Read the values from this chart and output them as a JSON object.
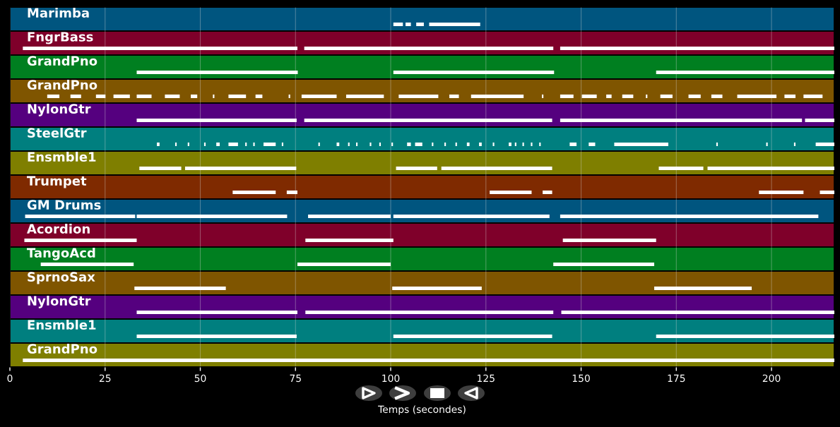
{
  "chart_data": {
    "type": "bar",
    "orientation": "horizontal",
    "categories": [
      "Marimba",
      "FngrBass",
      "GrandPno",
      "GrandPno",
      "NylonGtr",
      "SteelGtr",
      "Ensmble1",
      "Trumpet",
      "GM Drums",
      "Acordion",
      "TangoAcd",
      "SprnoSax",
      "NylonGtr",
      "Ensmble1",
      "GrandPno"
    ],
    "xlabel": "Temps (secondes)",
    "xlim": [
      0,
      216.5
    ],
    "xticks": [
      0,
      25,
      50,
      75,
      100,
      125,
      150,
      175,
      200
    ],
    "grid": "x",
    "series": [
      {
        "colors": [
          "#00557f",
          "#7f002a",
          "#007f20",
          "#7f5500",
          "#55007f",
          "#007f7f",
          "#7f7f00",
          "#7f2a00",
          "#00557f",
          "#7f002a",
          "#007f20",
          "#7f5500",
          "#55007f",
          "#007f7f",
          "#7f7f00"
        ],
        "values": [
          216.5,
          216.5,
          216.5,
          216.5,
          216.5,
          216.5,
          216.5,
          216.5,
          216.5,
          216.5,
          216.5,
          216.5,
          216.5,
          216.5,
          216.5
        ]
      },
      {
        "color": "#ffffff",
        "base": [
          100.7,
          3.4,
          33.3,
          9.8,
          33.3,
          38.6,
          34.0,
          58.5,
          4.0,
          3.8,
          8.1,
          32.7,
          33.3,
          33.3,
          3.4
        ],
        "values": [
          2.5,
          72.1,
          42.3,
          3.2,
          42.0,
          0.7,
          11.0,
          11.3,
          28.9,
          29.5,
          24.4,
          24.0,
          42.2,
          42.0,
          213.1
        ]
      },
      {
        "color": "#ffffff",
        "base": [
          103.9,
          77.3,
          100.7,
          15.9,
          77.3,
          43.4,
          46.0,
          72.7,
          33.3,
          77.6,
          75.5,
          100.4,
          77.6,
          100.7,
          null
        ],
        "values": [
          1.4,
          65.4,
          42.2,
          2.8,
          65.1,
          0.4,
          29.2,
          2.8,
          39.5,
          23.1,
          24.5,
          23.5,
          65.1,
          41.7,
          null
        ]
      },
      {
        "color": "#ffffff",
        "base": [
          106.7,
          144.5,
          169.7,
          22.6,
          144.5,
          46.7,
          101.4,
          126.0,
          78.3,
          145.2,
          142.7,
          169.2,
          144.8,
          169.7,
          null
        ],
        "values": [
          2.0,
          72.0,
          46.8,
          2.5,
          63.5,
          0.4,
          10.8,
          11.0,
          21.7,
          24.5,
          26.5,
          25.6,
          71.7,
          46.8,
          null
        ]
      },
      {
        "color": "#ffffff",
        "base": [
          110.1,
          null,
          null,
          27.2,
          208.8,
          51.0,
          113.3,
          139.9,
          100.7,
          null,
          null,
          null,
          null,
          null,
          null
        ],
        "values": [
          13.4,
          null,
          null,
          4.3,
          7.7,
          0.4,
          29.1,
          2.5,
          41.0,
          null,
          null,
          null,
          null,
          null,
          null
        ]
      },
      {
        "color": "#ffffff",
        "base": [
          null,
          null,
          null,
          33.3,
          null,
          54.2,
          170.4,
          196.7,
          144.5,
          null,
          null,
          null,
          null,
          null,
          null
        ],
        "values": [
          null,
          null,
          null,
          3.9,
          null,
          0.9,
          11.7,
          11.7,
          67.8,
          null,
          null,
          null,
          null,
          null,
          null
        ]
      },
      {
        "color": "#ffffff",
        "base": [
          null,
          null,
          null,
          40.7,
          null,
          57.4,
          183.2,
          212.7,
          null,
          null,
          null,
          null,
          null,
          null,
          null
        ],
        "values": [
          null,
          null,
          null,
          3.9,
          null,
          2.5,
          33.3,
          3.8,
          null,
          null,
          null,
          null,
          null,
          null,
          null
        ]
      },
      {
        "color": "#ffffff",
        "base": [
          null,
          null,
          null,
          47.5,
          null,
          61.8,
          null,
          null,
          null,
          null,
          null,
          null,
          null,
          null,
          null
        ],
        "values": [
          null,
          null,
          null,
          1.7,
          null,
          0.4,
          null,
          null,
          null,
          null,
          null,
          null,
          null,
          null,
          null
        ]
      },
      {
        "color": "#ffffff",
        "base": [
          null,
          null,
          null,
          53.3,
          null,
          63.9,
          null,
          null,
          null,
          null,
          null,
          null,
          null,
          null,
          null
        ],
        "values": [
          null,
          null,
          null,
          0.4,
          null,
          0.4,
          null,
          null,
          null,
          null,
          null,
          null,
          null,
          null,
          null
        ]
      },
      {
        "color": "#ffffff",
        "base": [
          null,
          null,
          null,
          57.4,
          null,
          66.6,
          null,
          null,
          null,
          null,
          null,
          null,
          null,
          null,
          null
        ],
        "values": [
          null,
          null,
          null,
          4.6,
          null,
          3.2,
          null,
          null,
          null,
          null,
          null,
          null,
          null,
          null,
          null
        ]
      },
      {
        "color": "#ffffff",
        "base": [
          null,
          null,
          null,
          64.5,
          null,
          71.4,
          null,
          null,
          null,
          null,
          null,
          null,
          null,
          null,
          null
        ],
        "values": [
          null,
          null,
          null,
          1.8,
          null,
          0.4,
          null,
          null,
          null,
          null,
          null,
          null,
          null,
          null,
          null
        ]
      },
      {
        "color": "#ffffff",
        "base": [
          null,
          null,
          null,
          73.2,
          null,
          81.0,
          null,
          null,
          null,
          null,
          null,
          null,
          null,
          null,
          null
        ],
        "values": [
          null,
          null,
          null,
          0.4,
          null,
          0.4,
          null,
          null,
          null,
          null,
          null,
          null,
          null,
          null,
          null
        ]
      },
      {
        "color": "#ffffff",
        "base": [
          null,
          null,
          null,
          76.6,
          null,
          85.8,
          null,
          null,
          null,
          null,
          null,
          null,
          null,
          null,
          null
        ],
        "values": [
          null,
          null,
          null,
          9.2,
          null,
          0.7,
          null,
          null,
          null,
          null,
          null,
          null,
          null,
          null,
          null
        ]
      },
      {
        "color": "#ffffff",
        "base": [
          null,
          null,
          null,
          88.3,
          null,
          88.8,
          null,
          null,
          null,
          null,
          null,
          null,
          null,
          null,
          null
        ],
        "values": [
          null,
          null,
          null,
          9.9,
          null,
          0.4,
          null,
          null,
          null,
          null,
          null,
          null,
          null,
          null,
          null
        ]
      },
      {
        "color": "#ffffff",
        "base": [
          null,
          null,
          null,
          102.1,
          null,
          90.9,
          null,
          null,
          null,
          null,
          null,
          null,
          null,
          null,
          null
        ],
        "values": [
          null,
          null,
          null,
          10.4,
          null,
          0.4,
          null,
          null,
          null,
          null,
          null,
          null,
          null,
          null,
          null
        ]
      },
      {
        "color": "#ffffff",
        "base": [
          null,
          null,
          null,
          115.4,
          null,
          94.5,
          null,
          null,
          null,
          null,
          null,
          null,
          null,
          null,
          null
        ],
        "values": [
          null,
          null,
          null,
          2.5,
          null,
          0.4,
          null,
          null,
          null,
          null,
          null,
          null,
          null,
          null,
          null
        ]
      },
      {
        "color": "#ffffff",
        "base": [
          null,
          null,
          null,
          121.1,
          null,
          97.0,
          null,
          null,
          null,
          null,
          null,
          null,
          null,
          null,
          null
        ],
        "values": [
          null,
          null,
          null,
          13.8,
          null,
          0.4,
          null,
          null,
          null,
          null,
          null,
          null,
          null,
          null,
          null
        ]
      },
      {
        "color": "#ffffff",
        "base": [
          null,
          null,
          null,
          139.7,
          null,
          100.2,
          null,
          null,
          null,
          null,
          null,
          null,
          null,
          null,
          null
        ],
        "values": [
          null,
          null,
          null,
          0.4,
          null,
          0.4,
          null,
          null,
          null,
          null,
          null,
          null,
          null,
          null,
          null
        ]
      },
      {
        "color": "#ffffff",
        "base": [
          null,
          null,
          null,
          144.5,
          null,
          104.3,
          null,
          null,
          null,
          null,
          null,
          null,
          null,
          null,
          null
        ],
        "values": [
          null,
          null,
          null,
          3.5,
          null,
          1.0,
          null,
          null,
          null,
          null,
          null,
          null,
          null,
          null,
          null
        ]
      },
      {
        "color": "#ffffff",
        "base": [
          null,
          null,
          null,
          150.2,
          null,
          106.4,
          null,
          null,
          null,
          null,
          null,
          null,
          null,
          null,
          null
        ],
        "values": [
          null,
          null,
          null,
          3.9,
          null,
          1.9,
          null,
          null,
          null,
          null,
          null,
          null,
          null,
          null,
          null
        ]
      },
      {
        "color": "#ffffff",
        "base": [
          null,
          null,
          null,
          156.6,
          null,
          110.8,
          null,
          null,
          null,
          null,
          null,
          null,
          null,
          null,
          null
        ],
        "values": [
          null,
          null,
          null,
          1.4,
          null,
          0.4,
          null,
          null,
          null,
          null,
          null,
          null,
          null,
          null,
          null
        ]
      },
      {
        "color": "#ffffff",
        "base": [
          null,
          null,
          null,
          160.8,
          null,
          114.1,
          null,
          null,
          null,
          null,
          null,
          null,
          null,
          null,
          null
        ],
        "values": [
          null,
          null,
          null,
          2.9,
          null,
          0.4,
          null,
          null,
          null,
          null,
          null,
          null,
          null,
          null,
          null
        ]
      },
      {
        "color": "#ffffff",
        "base": [
          null,
          null,
          null,
          167.0,
          null,
          117.0,
          null,
          null,
          null,
          null,
          null,
          null,
          null,
          null,
          null
        ],
        "values": [
          null,
          null,
          null,
          0.4,
          null,
          0.4,
          null,
          null,
          null,
          null,
          null,
          null,
          null,
          null,
          null
        ]
      },
      {
        "color": "#ffffff",
        "base": [
          null,
          null,
          null,
          170.8,
          null,
          120.0,
          null,
          null,
          null,
          null,
          null,
          null,
          null,
          null,
          null
        ],
        "values": [
          null,
          null,
          null,
          3.2,
          null,
          0.7,
          null,
          null,
          null,
          null,
          null,
          null,
          null,
          null,
          null
        ]
      },
      {
        "color": "#ffffff",
        "base": [
          null,
          null,
          null,
          178.2,
          null,
          123.2,
          null,
          null,
          null,
          null,
          null,
          null,
          null,
          null,
          null
        ],
        "values": [
          null,
          null,
          null,
          3.2,
          null,
          0.7,
          null,
          null,
          null,
          null,
          null,
          null,
          null,
          null,
          null
        ]
      },
      {
        "color": "#ffffff",
        "base": [
          null,
          null,
          null,
          184.2,
          null,
          126.8,
          null,
          null,
          null,
          null,
          null,
          null,
          null,
          null,
          null
        ],
        "values": [
          null,
          null,
          null,
          2.9,
          null,
          0.4,
          null,
          null,
          null,
          null,
          null,
          null,
          null,
          null,
          null
        ]
      },
      {
        "color": "#ffffff",
        "base": [
          null,
          null,
          null,
          191.0,
          null,
          131.0,
          null,
          null,
          null,
          null,
          null,
          null,
          null,
          null,
          null
        ],
        "values": [
          null,
          null,
          null,
          10.3,
          null,
          0.7,
          null,
          null,
          null,
          null,
          null,
          null,
          null,
          null,
          null
        ]
      },
      {
        "color": "#ffffff",
        "base": [
          null,
          null,
          null,
          203.4,
          null,
          132.6,
          null,
          null,
          null,
          null,
          null,
          null,
          null,
          null,
          null
        ],
        "values": [
          null,
          null,
          null,
          2.9,
          null,
          0.4,
          null,
          null,
          null,
          null,
          null,
          null,
          null,
          null,
          null
        ]
      },
      {
        "color": "#ffffff",
        "base": [
          null,
          null,
          null,
          208.4,
          null,
          134.6,
          null,
          null,
          null,
          null,
          null,
          null,
          null,
          null,
          null
        ],
        "values": [
          null,
          null,
          null,
          5.0,
          null,
          0.4,
          null,
          null,
          null,
          null,
          null,
          null,
          null,
          null,
          null
        ]
      },
      {
        "color": "#ffffff",
        "base": [
          null,
          null,
          null,
          null,
          null,
          136.8,
          null,
          null,
          null,
          null,
          null,
          null,
          null,
          null,
          null
        ],
        "values": [
          null,
          null,
          null,
          null,
          null,
          0.4,
          null,
          null,
          null,
          null,
          null,
          null,
          null,
          null,
          null
        ]
      },
      {
        "color": "#ffffff",
        "base": [
          null,
          null,
          null,
          null,
          null,
          139.0,
          null,
          null,
          null,
          null,
          null,
          null,
          null,
          null,
          null
        ],
        "values": [
          null,
          null,
          null,
          null,
          null,
          0.4,
          null,
          null,
          null,
          null,
          null,
          null,
          null,
          null,
          null
        ]
      },
      {
        "color": "#ffffff",
        "base": [
          null,
          null,
          null,
          null,
          null,
          147.0,
          null,
          null,
          null,
          null,
          null,
          null,
          null,
          null,
          null
        ],
        "values": [
          null,
          null,
          null,
          null,
          null,
          1.8,
          null,
          null,
          null,
          null,
          null,
          null,
          null,
          null,
          null
        ]
      },
      {
        "color": "#ffffff",
        "base": [
          null,
          null,
          null,
          null,
          null,
          152.0,
          null,
          null,
          null,
          null,
          null,
          null,
          null,
          null,
          null
        ],
        "values": [
          null,
          null,
          null,
          null,
          null,
          1.7,
          null,
          null,
          null,
          null,
          null,
          null,
          null,
          null,
          null
        ]
      },
      {
        "color": "#ffffff",
        "base": [
          null,
          null,
          null,
          null,
          null,
          158.7,
          null,
          null,
          null,
          null,
          null,
          null,
          null,
          null,
          null
        ],
        "values": [
          null,
          null,
          null,
          null,
          null,
          14.2,
          null,
          null,
          null,
          null,
          null,
          null,
          null,
          null,
          null
        ]
      },
      {
        "color": "#ffffff",
        "base": [
          null,
          null,
          null,
          null,
          null,
          185.5,
          null,
          null,
          null,
          null,
          null,
          null,
          null,
          null,
          null
        ],
        "values": [
          null,
          null,
          null,
          null,
          null,
          0.4,
          null,
          null,
          null,
          null,
          null,
          null,
          null,
          null,
          null
        ]
      },
      {
        "color": "#ffffff",
        "base": [
          null,
          null,
          null,
          null,
          null,
          198.6,
          null,
          null,
          null,
          null,
          null,
          null,
          null,
          null,
          null
        ],
        "values": [
          null,
          null,
          null,
          null,
          null,
          0.4,
          null,
          null,
          null,
          null,
          null,
          null,
          null,
          null,
          null
        ]
      },
      {
        "color": "#ffffff",
        "base": [
          null,
          null,
          null,
          null,
          null,
          205.9,
          null,
          null,
          null,
          null,
          null,
          null,
          null,
          null,
          null
        ],
        "values": [
          null,
          null,
          null,
          null,
          null,
          0.4,
          null,
          null,
          null,
          null,
          null,
          null,
          null,
          null,
          null
        ]
      },
      {
        "color": "#ffffff",
        "base": [
          null,
          null,
          null,
          null,
          null,
          211.6,
          null,
          null,
          null,
          null,
          null,
          null,
          null,
          null,
          null
        ],
        "values": [
          null,
          null,
          null,
          null,
          null,
          4.9,
          null,
          null,
          null,
          null,
          null,
          null,
          null,
          null,
          null
        ]
      }
    ]
  }
}
